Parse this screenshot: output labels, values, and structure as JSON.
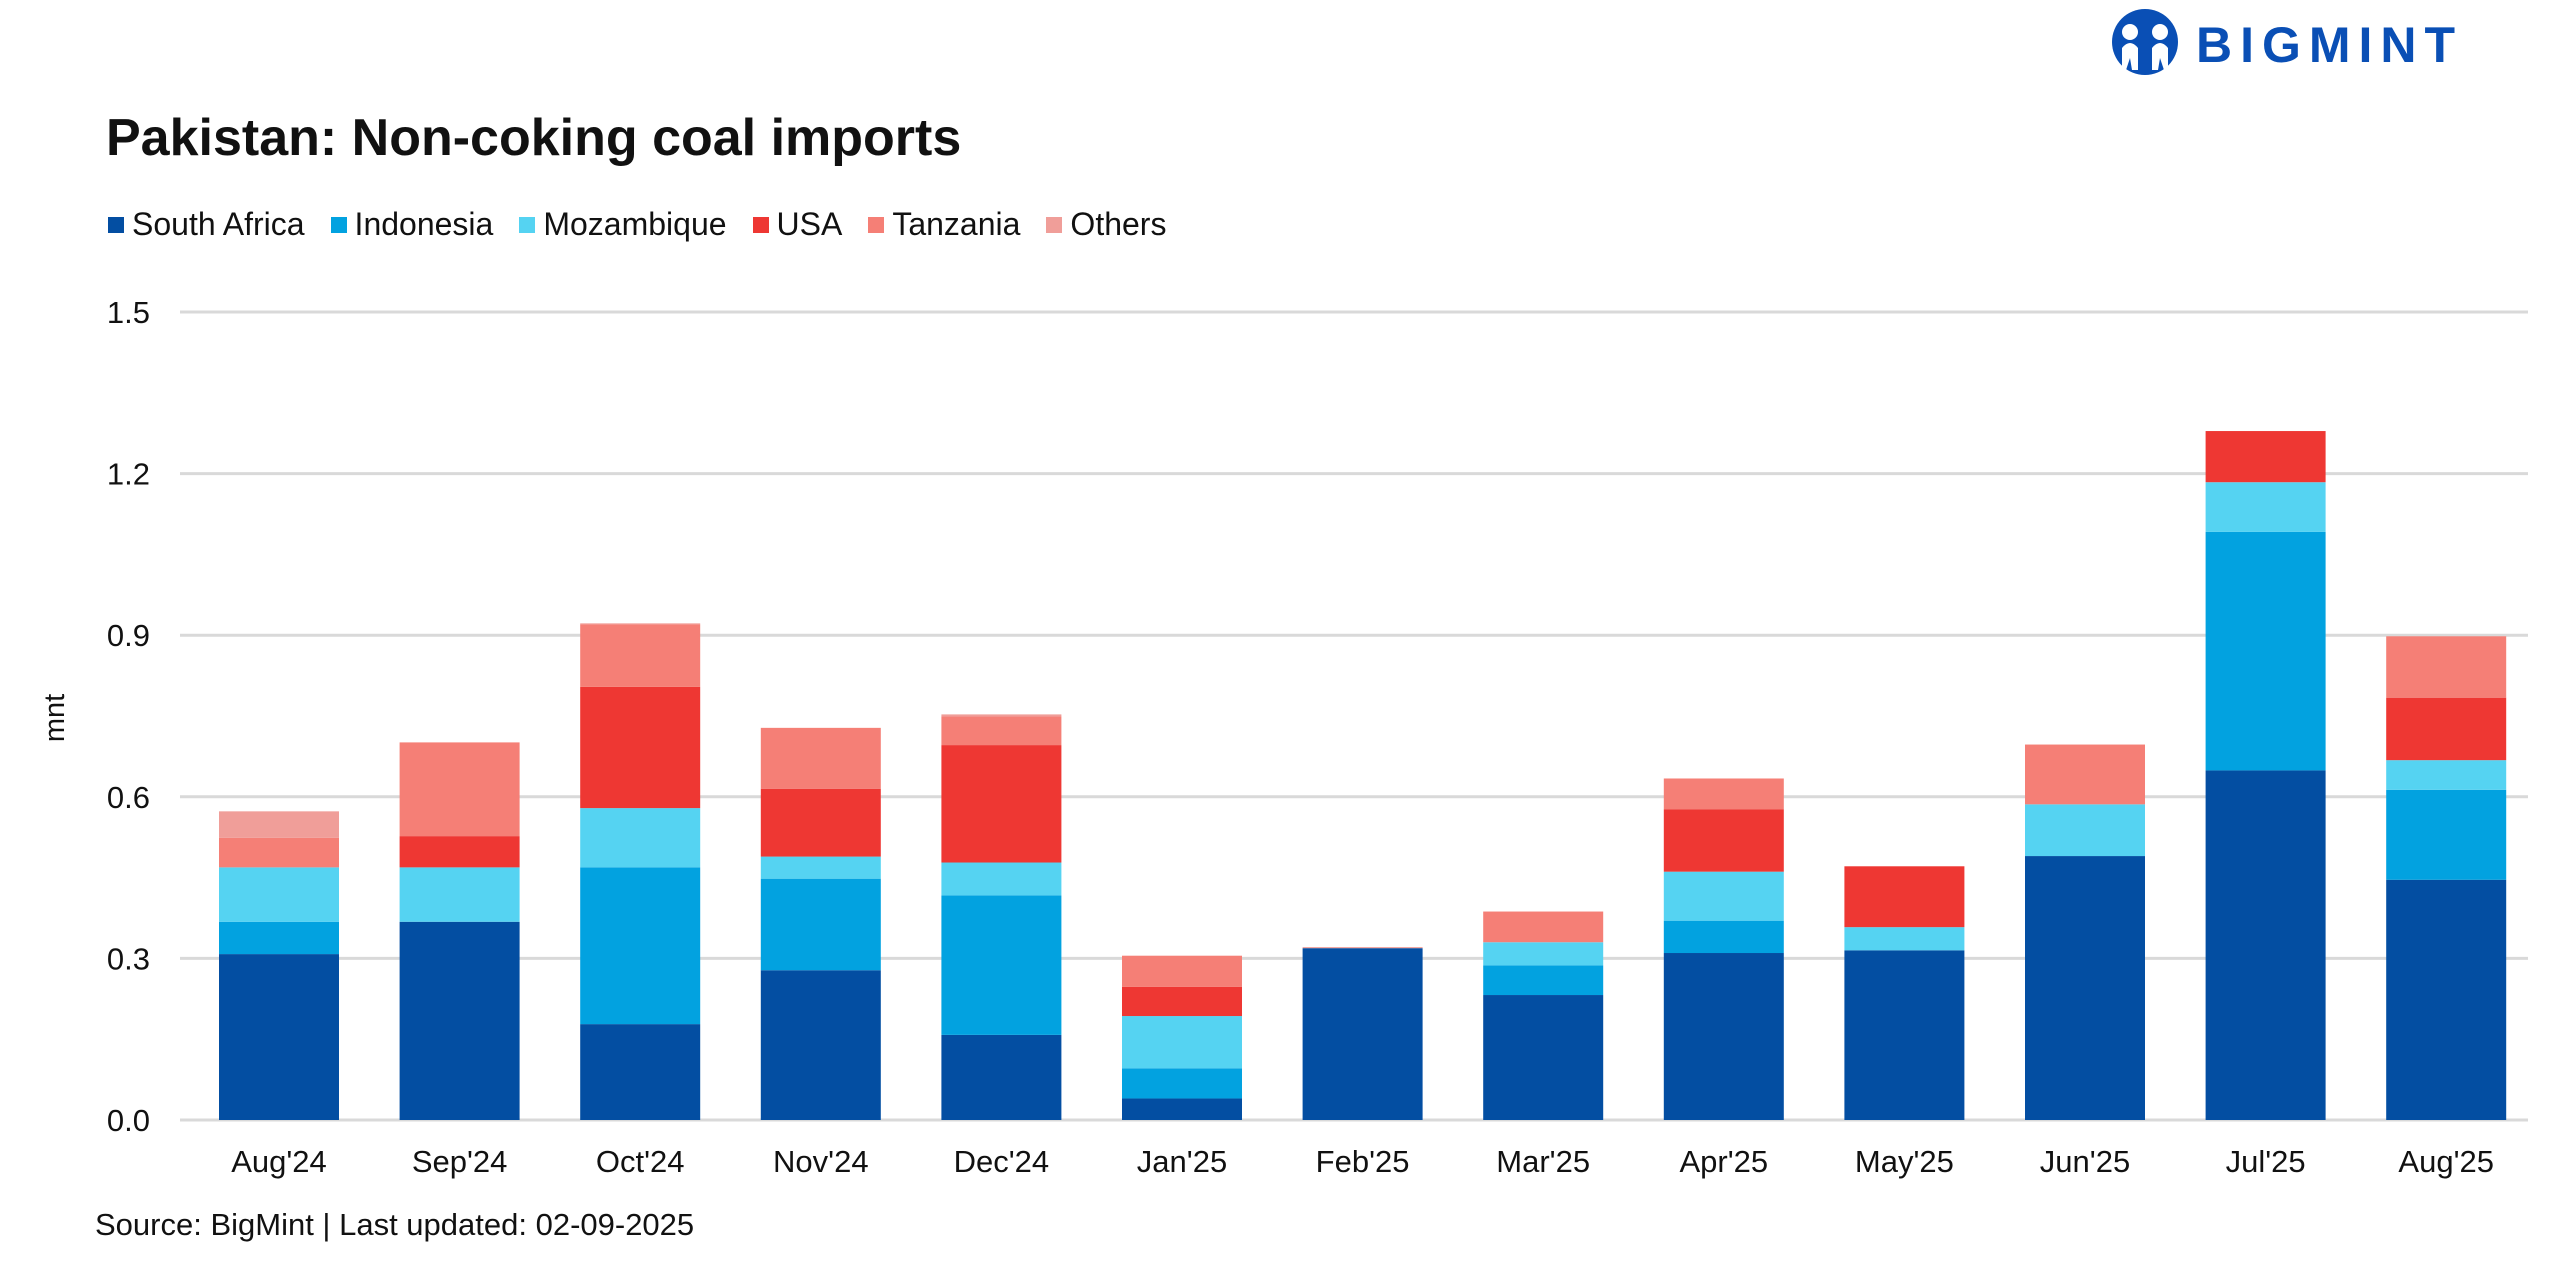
{
  "logo": {
    "text": "BIGMINT",
    "color": "#0a4fb5"
  },
  "source": "Source: BigMint | Last updated: 02-09-2025",
  "chart_data": {
    "type": "bar",
    "stacked": true,
    "title": "Pakistan: Non-coking coal imports",
    "xlabel": "",
    "ylabel": "mnt",
    "ylim": [
      0,
      1.5
    ],
    "yticks": [
      "0.0",
      "0.3",
      "0.6",
      "0.9",
      "1.2",
      "1.5"
    ],
    "grid": true,
    "legend_position": "top-left",
    "categories": [
      "Aug'24",
      "Sep'24",
      "Oct'24",
      "Nov'24",
      "Dec'24",
      "Jan'25",
      "Feb'25",
      "Mar'25",
      "Apr'25",
      "May'25",
      "Jun'25",
      "Jul'25",
      "Aug'25"
    ],
    "series": [
      {
        "name": "South Africa",
        "color": "#034ea2",
        "values": [
          0.308,
          0.368,
          0.178,
          0.278,
          0.158,
          0.04,
          0.319,
          0.232,
          0.31,
          0.315,
          0.49,
          0.649,
          0.446
        ]
      },
      {
        "name": "Indonesia",
        "color": "#02a2e0",
        "values": [
          0.06,
          0,
          0.291,
          0.17,
          0.259,
          0.056,
          0,
          0.055,
          0.06,
          0,
          0,
          0.443,
          0.167
        ]
      },
      {
        "name": "Mozambique",
        "color": "#55d3f2",
        "values": [
          0.101,
          0.101,
          0.11,
          0.041,
          0.061,
          0.097,
          0,
          0.043,
          0.091,
          0.043,
          0.096,
          0.092,
          0.055
        ]
      },
      {
        "name": "USA",
        "color": "#ee3733",
        "values": [
          0,
          0.058,
          0.225,
          0.126,
          0.218,
          0.054,
          0,
          0,
          0.116,
          0.113,
          0,
          0.095,
          0.116
        ]
      },
      {
        "name": "Tanzania",
        "color": "#f57f76",
        "values": [
          0.055,
          0.174,
          0.116,
          0.113,
          0.053,
          0.058,
          0,
          0.057,
          0.057,
          0,
          0.111,
          0,
          0.114
        ]
      },
      {
        "name": "Others",
        "color": "#f09e99",
        "values": [
          0.049,
          0,
          0.002,
          0,
          0.004,
          0,
          0.002,
          0,
          0,
          0,
          0,
          0,
          0
        ]
      }
    ]
  }
}
